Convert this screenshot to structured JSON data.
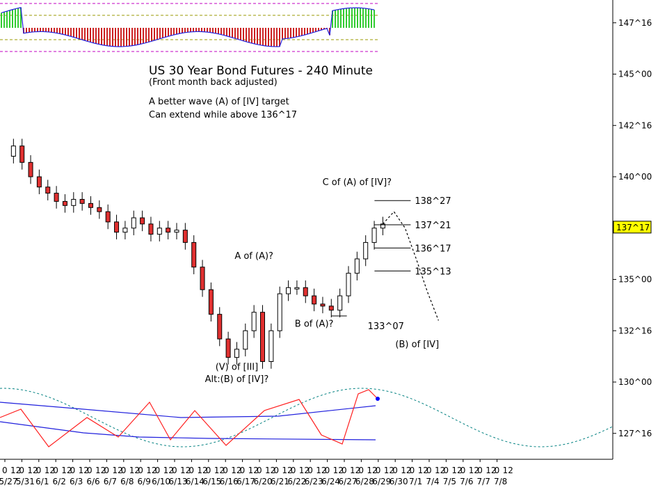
{
  "chart_data": {
    "type": "candlestick",
    "title": "US 30 Year Bond Futures - 240 Minute",
    "subtitle": "(Front month back adjusted)",
    "notes": [
      "A better wave (A) of [IV] target",
      "Can extend while above 136^17"
    ],
    "y_ticks": [
      "147^16",
      "145^00",
      "142^16",
      "140^00",
      "137^16",
      "135^00",
      "132^16",
      "130^00",
      "127^16"
    ],
    "y_tick_values": [
      147.5,
      145.0,
      142.5,
      140.0,
      137.5,
      135.0,
      132.5,
      130.0,
      127.5
    ],
    "ylim": [
      126.5,
      148.0
    ],
    "last_price": "137^17",
    "last_price_value": 137.53,
    "x_hours": [
      "0",
      "12"
    ],
    "x_dates": [
      "5/27",
      "5/31",
      "6/1",
      "6/2",
      "6/3",
      "6/6",
      "6/7",
      "6/8",
      "6/9",
      "6/10",
      "6/13",
      "6/14",
      "6/15",
      "6/16",
      "6/17",
      "6/20",
      "6/21",
      "6/22",
      "6/23",
      "6/24",
      "6/27",
      "6/28",
      "6/29",
      "6/30",
      "7/1",
      "7/4",
      "7/5",
      "7/6",
      "7/7",
      "7/8"
    ],
    "close_path": [
      141.0,
      141.5,
      140.7,
      140.0,
      139.5,
      139.2,
      138.8,
      138.6,
      138.9,
      138.7,
      138.5,
      138.3,
      137.8,
      137.3,
      137.5,
      138.0,
      137.7,
      137.2,
      137.5,
      137.3,
      137.4,
      136.8,
      135.6,
      134.5,
      133.3,
      132.1,
      131.2,
      131.6,
      132.5,
      133.4,
      131.0,
      132.5,
      134.3,
      134.6,
      134.6,
      134.2,
      133.8,
      133.7,
      133.5,
      134.2,
      135.3,
      136.0,
      136.8,
      137.5,
      137.7
    ],
    "projection_path": [
      137.7,
      138.3,
      137.5,
      136.0,
      134.4,
      133.0
    ],
    "levels": [
      {
        "label": "138^27",
        "value": 138.84
      },
      {
        "label": "137^21",
        "value": 137.66
      },
      {
        "label": "136^17",
        "value": 136.53
      },
      {
        "label": "135^13",
        "value": 135.41
      },
      {
        "label": "133^07",
        "value": 133.22
      }
    ],
    "wave_labels": [
      {
        "text": "C of (A) of [IV]?",
        "x_index": 41,
        "value": 139.6
      },
      {
        "text": "A of (A)?",
        "x_index": 29,
        "value": 136.0
      },
      {
        "text": "B of (A)?",
        "x_index": 36,
        "value": 132.7
      },
      {
        "text": "(V) of [III]",
        "x_index": 27,
        "value": 130.6
      },
      {
        "text": "Alt:(B) of [IV]?",
        "x_index": 27,
        "value": 130.0
      },
      {
        "text": "(B) of [IV]",
        "x_index": 48,
        "value": 131.7
      }
    ],
    "colors": {
      "up": "#ffffff",
      "down": "#e03030",
      "wick": "#000000",
      "hist_up": "#33cc33",
      "hist_down": "#cc2222",
      "osc_red": "#ff2020",
      "osc_blue": "#2020dd",
      "cycle": "#008080",
      "grid_dash": "#c000c0",
      "level_olive": "#999900",
      "label_bg": "#ffff00"
    }
  }
}
